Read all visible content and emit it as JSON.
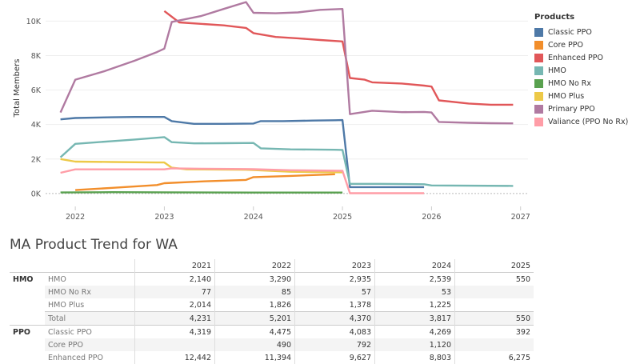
{
  "chart_data": {
    "type": "line",
    "ylabel": "Total Members",
    "xlabel": "",
    "x_ticks": [
      "2022",
      "2023",
      "2024",
      "2025",
      "2026",
      "2027"
    ],
    "y_ticks": [
      "0K",
      "2K",
      "4K",
      "6K",
      "8K",
      "10K"
    ],
    "xlim": [
      "2021-09",
      "2027-02"
    ],
    "ylim": [
      -700,
      10850
    ],
    "grid": "horizontal",
    "legend_title": "Products",
    "legend_position": "right",
    "series": [
      {
        "name": "Classic PPO",
        "color": "#4e79a7",
        "points": [
          [
            "2021-11",
            4300
          ],
          [
            "2022-01",
            4380
          ],
          [
            "2022-06",
            4420
          ],
          [
            "2022-09",
            4440
          ],
          [
            "2023-01",
            4440
          ],
          [
            "2023-02",
            4200
          ],
          [
            "2023-05",
            4040
          ],
          [
            "2023-09",
            4040
          ],
          [
            "2024-01",
            4060
          ],
          [
            "2024-02",
            4200
          ],
          [
            "2024-05",
            4200
          ],
          [
            "2024-09",
            4230
          ],
          [
            "2024-12",
            4250
          ],
          [
            "2025-01",
            4260
          ],
          [
            "2025-02",
            370
          ],
          [
            "2025-06",
            370
          ],
          [
            "2025-12",
            370
          ]
        ]
      },
      {
        "name": "Core PPO",
        "color": "#f28e2b",
        "points": [
          [
            "2022-01",
            200
          ],
          [
            "2022-06",
            330
          ],
          [
            "2022-12",
            490
          ],
          [
            "2023-01",
            600
          ],
          [
            "2023-06",
            700
          ],
          [
            "2023-12",
            790
          ],
          [
            "2024-01",
            950
          ],
          [
            "2024-06",
            1020
          ],
          [
            "2024-12",
            1120
          ]
        ]
      },
      {
        "name": "Enhanced PPO",
        "color": "#e15759",
        "points": [
          [
            "2023-01",
            10580
          ],
          [
            "2023-03",
            9920
          ],
          [
            "2023-09",
            9750
          ],
          [
            "2023-12",
            9600
          ],
          [
            "2024-01",
            9300
          ],
          [
            "2024-04",
            9080
          ],
          [
            "2024-07",
            9000
          ],
          [
            "2024-10",
            8900
          ],
          [
            "2025-01",
            8820
          ],
          [
            "2025-02",
            6700
          ],
          [
            "2025-04",
            6600
          ],
          [
            "2025-05",
            6450
          ],
          [
            "2025-09",
            6380
          ],
          [
            "2025-12",
            6260
          ],
          [
            "2026-01",
            6200
          ],
          [
            "2026-02",
            5400
          ],
          [
            "2026-06",
            5220
          ],
          [
            "2026-09",
            5150
          ],
          [
            "2026-12",
            5150
          ]
        ]
      },
      {
        "name": "HMO",
        "color": "#76b7b2",
        "points": [
          [
            "2021-11",
            2100
          ],
          [
            "2022-01",
            2880
          ],
          [
            "2022-06",
            3040
          ],
          [
            "2022-09",
            3130
          ],
          [
            "2023-01",
            3270
          ],
          [
            "2023-02",
            2980
          ],
          [
            "2023-05",
            2910
          ],
          [
            "2023-09",
            2920
          ],
          [
            "2024-01",
            2930
          ],
          [
            "2024-02",
            2620
          ],
          [
            "2024-06",
            2560
          ],
          [
            "2024-12",
            2540
          ],
          [
            "2025-01",
            2530
          ],
          [
            "2025-02",
            560
          ],
          [
            "2025-06",
            560
          ],
          [
            "2025-12",
            540
          ],
          [
            "2026-01",
            470
          ],
          [
            "2026-12",
            440
          ]
        ]
      },
      {
        "name": "HMO No Rx",
        "color": "#59a14f",
        "points": [
          [
            "2021-11",
            60
          ],
          [
            "2022-06",
            80
          ],
          [
            "2023-01",
            70
          ],
          [
            "2024-01",
            55
          ],
          [
            "2025-01",
            55
          ]
        ]
      },
      {
        "name": "HMO Plus",
        "color": "#edc948",
        "points": [
          [
            "2021-11",
            2000
          ],
          [
            "2022-01",
            1850
          ],
          [
            "2022-06",
            1830
          ],
          [
            "2022-12",
            1800
          ],
          [
            "2023-01",
            1800
          ],
          [
            "2023-02",
            1500
          ],
          [
            "2023-04",
            1400
          ],
          [
            "2023-12",
            1380
          ],
          [
            "2024-01",
            1360
          ],
          [
            "2024-06",
            1260
          ],
          [
            "2025-01",
            1230
          ]
        ]
      },
      {
        "name": "Primary PPO",
        "color": "#b07aa1",
        "points": [
          [
            "2021-11",
            4700
          ],
          [
            "2022-01",
            6600
          ],
          [
            "2022-05",
            7100
          ],
          [
            "2022-09",
            7700
          ],
          [
            "2022-12",
            8200
          ],
          [
            "2023-01",
            8400
          ],
          [
            "2023-02",
            9950
          ],
          [
            "2023-06",
            10300
          ],
          [
            "2023-09",
            10700
          ],
          [
            "2023-12",
            11100
          ],
          [
            "2024-01",
            10480
          ],
          [
            "2024-04",
            10450
          ],
          [
            "2024-07",
            10500
          ],
          [
            "2024-10",
            10650
          ],
          [
            "2025-01",
            10700
          ],
          [
            "2025-02",
            4600
          ],
          [
            "2025-05",
            4800
          ],
          [
            "2025-09",
            4720
          ],
          [
            "2025-12",
            4730
          ],
          [
            "2026-01",
            4700
          ],
          [
            "2026-02",
            4150
          ],
          [
            "2026-06",
            4100
          ],
          [
            "2026-09",
            4080
          ],
          [
            "2026-12",
            4070
          ]
        ]
      },
      {
        "name": "Valiance (PPO No Rx)",
        "color": "#ff9da7",
        "points": [
          [
            "2021-11",
            1200
          ],
          [
            "2022-01",
            1400
          ],
          [
            "2022-06",
            1400
          ],
          [
            "2023-01",
            1400
          ],
          [
            "2023-02",
            1460
          ],
          [
            "2023-06",
            1440
          ],
          [
            "2023-12",
            1420
          ],
          [
            "2024-01",
            1410
          ],
          [
            "2024-06",
            1350
          ],
          [
            "2025-01",
            1320
          ],
          [
            "2025-02",
            20
          ],
          [
            "2025-12",
            20
          ]
        ]
      }
    ]
  },
  "table": {
    "title": "MA Product Trend for WA",
    "years": [
      "2021",
      "2022",
      "2023",
      "2024",
      "2025"
    ],
    "groups": [
      {
        "name": "HMO",
        "rows": [
          {
            "product": "HMO",
            "values": [
              "2,140",
              "3,290",
              "2,935",
              "2,539",
              "550"
            ]
          },
          {
            "product": "HMO No Rx",
            "values": [
              "77",
              "85",
              "57",
              "53",
              ""
            ]
          },
          {
            "product": "HMO Plus",
            "values": [
              "2,014",
              "1,826",
              "1,378",
              "1,225",
              ""
            ]
          },
          {
            "product": "Total",
            "values": [
              "4,231",
              "5,201",
              "4,370",
              "3,817",
              "550"
            ],
            "total": true
          }
        ]
      },
      {
        "name": "PPO",
        "rows": [
          {
            "product": "Classic PPO",
            "values": [
              "4,319",
              "4,475",
              "4,083",
              "4,269",
              "392"
            ]
          },
          {
            "product": "Core PPO",
            "values": [
              "",
              "490",
              "792",
              "1,120",
              ""
            ]
          },
          {
            "product": "Enhanced PPO",
            "values": [
              "12,442",
              "11,394",
              "9,627",
              "8,803",
              "6,275"
            ]
          }
        ]
      }
    ]
  }
}
